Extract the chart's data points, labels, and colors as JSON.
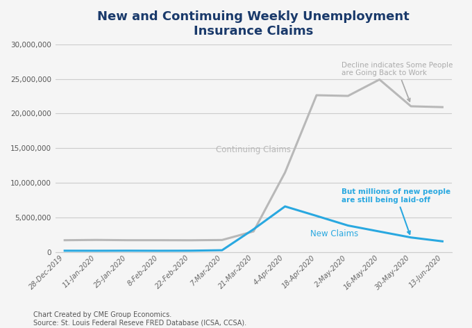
{
  "title": "New and Contimuing Weekly Unemployment\nInsurance Claims",
  "title_color": "#1a3a6b",
  "title_fontsize": 13,
  "footnote": "Chart Created by CME Group Economics.\nSource: St. Louis Federal Reseve FRED Database (ICSA, CCSA).",
  "x_labels": [
    "28-Dec-2019",
    "11-Jan-2020",
    "25-Jan-2020",
    "8-Feb-2020",
    "22-Feb-2020",
    "7-Mar-2020",
    "21-Mar-2020",
    "4-Apr-2020",
    "18-Apr-2020",
    "2-May-2020",
    "16-May-2020",
    "30-May-2020",
    "13-Jun-2020"
  ],
  "continuing_claims": [
    1726000,
    1770000,
    1730000,
    1730000,
    1720000,
    1760000,
    3000000,
    11500000,
    22647000,
    22548000,
    24912000,
    21052000,
    20929000
  ],
  "new_claims": [
    211000,
    204000,
    215000,
    205000,
    215000,
    282000,
    3307000,
    6606000,
    5237000,
    3846000,
    2981000,
    2123000,
    1566000
  ],
  "continuing_color": "#b8b8b8",
  "new_claims_color": "#29a8e0",
  "annotation_continuing_text": "Decline indicates Some People\nare Going Back to Work",
  "annotation_continuing_color": "#aaaaaa",
  "annotation_new_text": "But millions of new people\nare still being laid-off",
  "annotation_new_color": "#29a8e0",
  "label_continuing": "Continuing Claims",
  "label_new": "New Claims",
  "ylim": [
    0,
    30000000
  ],
  "yticks": [
    0,
    5000000,
    10000000,
    15000000,
    20000000,
    25000000,
    30000000
  ],
  "background_color": "#f5f5f5",
  "plot_bg_color": "#f5f5f5",
  "grid_color": "#cccccc"
}
